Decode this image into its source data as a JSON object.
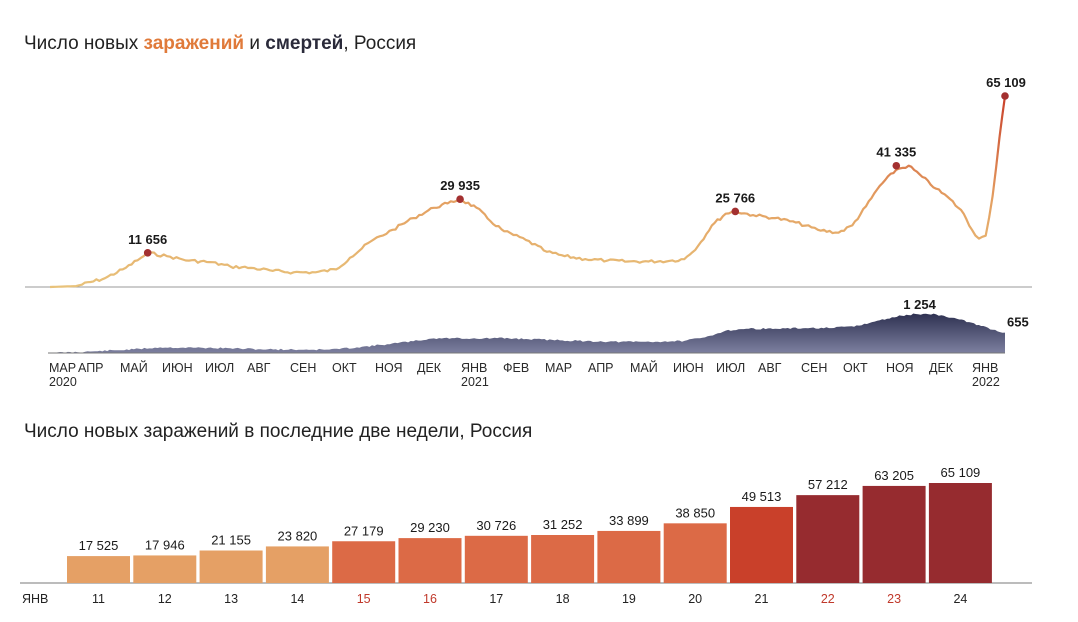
{
  "titles": {
    "main_prefix": "Число новых ",
    "main_infections": "заражений",
    "main_and": " и ",
    "main_deaths": "смертей",
    "main_suffix": ", Россия",
    "daily": "Число новых заражений в последние две недели, Россия"
  },
  "colors": {
    "line_low": "#e8c27a",
    "line_high": "#c9402a",
    "deaths_fill": "#4d5075",
    "marker": "#a33030",
    "axis": "#888888",
    "weekend_label": "#c0392b"
  },
  "chart_data": [
    {
      "type": "line",
      "name": "Новые заражения",
      "x_range": [
        "2020-03-01",
        "2022-01-24"
      ],
      "y_range": [
        0,
        65109
      ],
      "series": [
        {
          "x": [
            "2020-03-01",
            "2020-03-20",
            "2020-04-10",
            "2020-04-25",
            "2020-05-08",
            "2020-05-11",
            "2020-05-25",
            "2020-06-10",
            "2020-06-25",
            "2020-07-10",
            "2020-07-25",
            "2020-08-10",
            "2020-08-25",
            "2020-09-10",
            "2020-09-25",
            "2020-10-05",
            "2020-10-20",
            "2020-11-05",
            "2020-11-20",
            "2020-12-05",
            "2020-12-15",
            "2020-12-24",
            "2021-01-05",
            "2021-01-15",
            "2021-01-25",
            "2021-02-10",
            "2021-02-25",
            "2021-03-10",
            "2021-03-25",
            "2021-04-10",
            "2021-04-25",
            "2021-05-10",
            "2021-05-25",
            "2021-06-05",
            "2021-06-15",
            "2021-06-25",
            "2021-07-05",
            "2021-07-12",
            "2021-07-25",
            "2021-08-10",
            "2021-08-25",
            "2021-09-10",
            "2021-09-25",
            "2021-10-05",
            "2021-10-15",
            "2021-10-25",
            "2021-11-06",
            "2021-11-15",
            "2021-11-25",
            "2021-12-05",
            "2021-12-15",
            "2021-12-25",
            "2021-12-31",
            "2022-01-05",
            "2022-01-10",
            "2022-01-15",
            "2022-01-20",
            "2022-01-24"
          ],
          "y": [
            0,
            300,
            3000,
            6500,
            10500,
            11656,
            10500,
            9000,
            8500,
            7000,
            6500,
            5500,
            5000,
            5000,
            6000,
            10000,
            15500,
            19500,
            23500,
            27000,
            28500,
            29935,
            27000,
            22500,
            19000,
            16000,
            12000,
            10500,
            9500,
            9000,
            8700,
            8700,
            8900,
            9500,
            14000,
            21000,
            25000,
            25766,
            24500,
            23500,
            22000,
            19500,
            18500,
            21000,
            27500,
            34500,
            40000,
            41335,
            37500,
            33500,
            30000,
            25000,
            19500,
            16500,
            17500,
            31000,
            51000,
            65109
          ]
        }
      ],
      "labels": [
        {
          "x": "2020-05-11",
          "y": 11656,
          "text": "11 656"
        },
        {
          "x": "2020-12-24",
          "y": 29935,
          "text": "29 935"
        },
        {
          "x": "2021-07-12",
          "y": 25766,
          "text": "25 766"
        },
        {
          "x": "2021-11-06",
          "y": 41335,
          "text": "41 335"
        },
        {
          "x": "2022-01-24",
          "y": 65109,
          "text": "65 109"
        }
      ]
    },
    {
      "type": "area",
      "name": "Новые смерти",
      "x_range": [
        "2020-03-01",
        "2022-01-24"
      ],
      "y_range": [
        0,
        1254
      ],
      "series": [
        {
          "x": [
            "2020-03-01",
            "2020-04-01",
            "2020-05-01",
            "2020-05-20",
            "2020-06-15",
            "2020-07-10",
            "2020-08-01",
            "2020-08-25",
            "2020-09-20",
            "2020-10-10",
            "2020-11-01",
            "2020-11-20",
            "2020-12-05",
            "2020-12-20",
            "2021-01-05",
            "2021-01-20",
            "2021-02-10",
            "2021-03-01",
            "2021-03-25",
            "2021-04-20",
            "2021-05-15",
            "2021-06-05",
            "2021-06-20",
            "2021-07-05",
            "2021-07-20",
            "2021-08-10",
            "2021-09-01",
            "2021-09-20",
            "2021-10-10",
            "2021-10-25",
            "2021-11-10",
            "2021-11-20",
            "2021-12-05",
            "2021-12-20",
            "2022-01-05",
            "2022-01-15",
            "2022-01-24"
          ],
          "y": [
            0,
            50,
            120,
            180,
            170,
            150,
            120,
            110,
            110,
            180,
            280,
            380,
            470,
            480,
            460,
            480,
            450,
            420,
            380,
            360,
            360,
            390,
            500,
            720,
            780,
            780,
            800,
            800,
            880,
            1050,
            1200,
            1254,
            1240,
            1100,
            900,
            750,
            655
          ]
        }
      ],
      "labels": [
        {
          "x": "2021-11-20",
          "y": 1254,
          "text": "1 254"
        },
        {
          "x": "2022-01-24",
          "y": 655,
          "text": "655"
        }
      ]
    },
    {
      "type": "bar",
      "name": "Последние две недели",
      "xlabel_prefix": "ЯНВ",
      "categories": [
        "11",
        "12",
        "13",
        "14",
        "15",
        "16",
        "17",
        "18",
        "19",
        "20",
        "21",
        "22",
        "23",
        "24"
      ],
      "values": [
        17525,
        17946,
        21155,
        23820,
        27179,
        29230,
        30726,
        31252,
        33899,
        38850,
        49513,
        57212,
        63205,
        65109
      ],
      "value_labels": [
        "17 525",
        "17 946",
        "21 155",
        "23 820",
        "27 179",
        "29 230",
        "30 726",
        "31 252",
        "33 899",
        "38 850",
        "49 513",
        "57 212",
        "63 205",
        "65 109"
      ],
      "weekend_categories": [
        "15",
        "16",
        "22",
        "23"
      ],
      "colors": [
        "#e5a065",
        "#e5a065",
        "#e5a065",
        "#e5a065",
        "#dc6a46",
        "#dc6a46",
        "#dc6a46",
        "#dc6a46",
        "#dc6a46",
        "#dc6a46",
        "#c9402a",
        "#962b2f",
        "#962b2f",
        "#962b2f"
      ]
    }
  ],
  "x_axis": {
    "months": [
      "МАР",
      "АПР",
      "МАЙ",
      "ИЮН",
      "ИЮЛ",
      "АВГ",
      "СЕН",
      "ОКТ",
      "НОЯ",
      "ДЕК",
      "ЯНВ",
      "ФЕВ",
      "МАР",
      "АПР",
      "МАЙ",
      "ИЮН",
      "ИЮЛ",
      "АВГ",
      "СЕН",
      "ОКТ",
      "НОЯ",
      "ДЕК",
      "ЯНВ"
    ],
    "years": [
      "2020",
      "2021",
      "2022"
    ]
  }
}
